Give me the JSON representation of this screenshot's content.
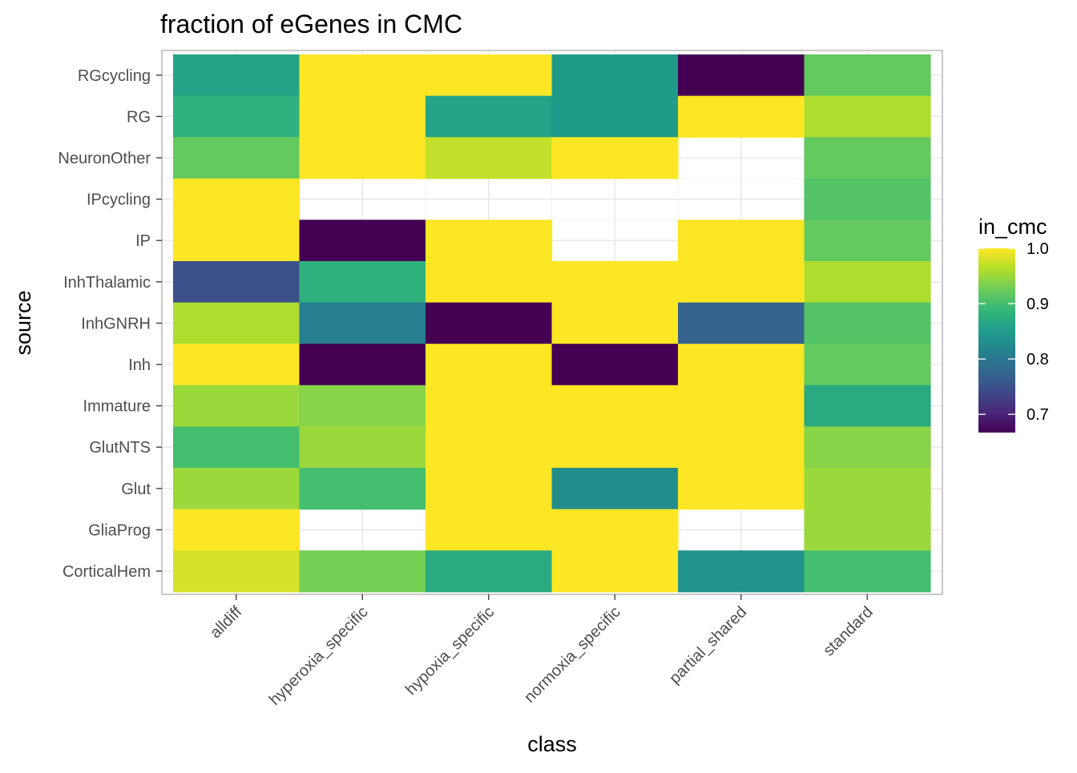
{
  "chart_data": {
    "type": "heatmap",
    "title": "fraction of eGenes in CMC",
    "xlabel": "class",
    "ylabel": "source",
    "x_categories": [
      "alldiff",
      "hyperoxia_specific",
      "hypoxia_specific",
      "normoxia_specific",
      "partial_shared",
      "standard"
    ],
    "y_categories": [
      "RGcycling",
      "RG",
      "NeuronOther",
      "IPcycling",
      "IP",
      "InhThalamic",
      "InhGNRH",
      "Inh",
      "Immature",
      "GlutNTS",
      "Glut",
      "GliaProg",
      "CorticalHem"
    ],
    "values": [
      [
        0.86,
        1.0,
        1.0,
        0.85,
        0.667,
        0.92
      ],
      [
        0.88,
        1.0,
        0.86,
        0.85,
        1.0,
        0.96
      ],
      [
        0.92,
        1.0,
        0.97,
        1.0,
        null,
        0.92
      ],
      [
        1.0,
        null,
        null,
        null,
        null,
        0.91
      ],
      [
        1.0,
        0.667,
        1.0,
        null,
        1.0,
        0.92
      ],
      [
        0.75,
        0.88,
        1.0,
        1.0,
        1.0,
        0.96
      ],
      [
        0.96,
        0.81,
        0.667,
        1.0,
        0.77,
        0.91
      ],
      [
        1.0,
        0.667,
        1.0,
        0.667,
        1.0,
        0.92
      ],
      [
        0.95,
        0.94,
        1.0,
        1.0,
        1.0,
        0.87
      ],
      [
        0.9,
        0.95,
        1.0,
        1.0,
        1.0,
        0.94
      ],
      [
        0.95,
        0.9,
        1.0,
        0.83,
        1.0,
        0.95
      ],
      [
        1.0,
        null,
        1.0,
        1.0,
        null,
        0.95
      ],
      [
        0.98,
        0.93,
        0.87,
        1.0,
        0.84,
        0.9
      ]
    ],
    "legend": {
      "title": "in_cmc",
      "ticks": [
        "1.0",
        "0.9",
        "0.8",
        "0.7"
      ],
      "tick_values": [
        1.0,
        0.9,
        0.8,
        0.7
      ],
      "range": [
        0.667,
        1.0
      ],
      "placement": "right"
    },
    "colors": {
      "viridis": [
        "#440154",
        "#482878",
        "#3E4A89",
        "#31688E",
        "#26828E",
        "#1F9E89",
        "#35B779",
        "#6DCD59",
        "#B4DE2C",
        "#FDE725"
      ],
      "panel_border": "#b3b3b3",
      "grid": "#e5e5e5",
      "tick_text": "#4d4d4d"
    },
    "grid": true
  }
}
